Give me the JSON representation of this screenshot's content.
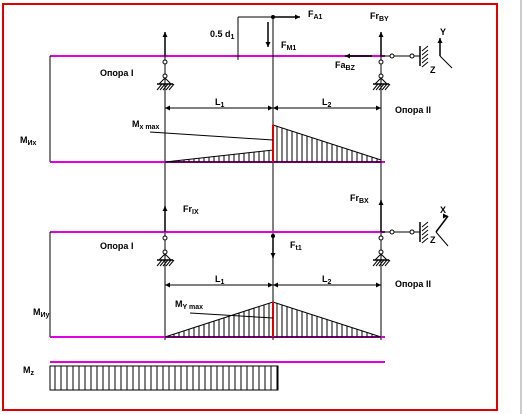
{
  "labels": [
    {
      "main": "F",
      "sub": "A1"
    },
    {
      "main": "Fr",
      "sub": "BY"
    },
    {
      "main": "0.5  d",
      "sub": "1"
    },
    {
      "main": "F",
      "sub": "M1"
    },
    {
      "main": "Fa",
      "sub": "BZ"
    },
    {
      "main": "Y"
    },
    {
      "main": "Z"
    },
    {
      "main": "Опора I"
    },
    {
      "main": "Опора II"
    },
    {
      "main": "L",
      "sub": "1"
    },
    {
      "main": "L",
      "sub": "2"
    },
    {
      "main": "M",
      "sub": "x max"
    },
    {
      "main": "M",
      "sub": "Их"
    },
    {
      "main": "Fr",
      "sub": "IX"
    },
    {
      "main": "Fr",
      "sub": "BX"
    },
    {
      "main": "X"
    },
    {
      "main": "Z"
    },
    {
      "main": "Опора I"
    },
    {
      "main": "F",
      "sub": "t1"
    },
    {
      "main": "L",
      "sub": "1"
    },
    {
      "main": "L",
      "sub": "2"
    },
    {
      "main": "Опора II"
    },
    {
      "main": "M",
      "sub": "Y max"
    },
    {
      "main": "M",
      "sub": "Иу"
    },
    {
      "main": "M",
      "sub": "z"
    }
  ]
}
